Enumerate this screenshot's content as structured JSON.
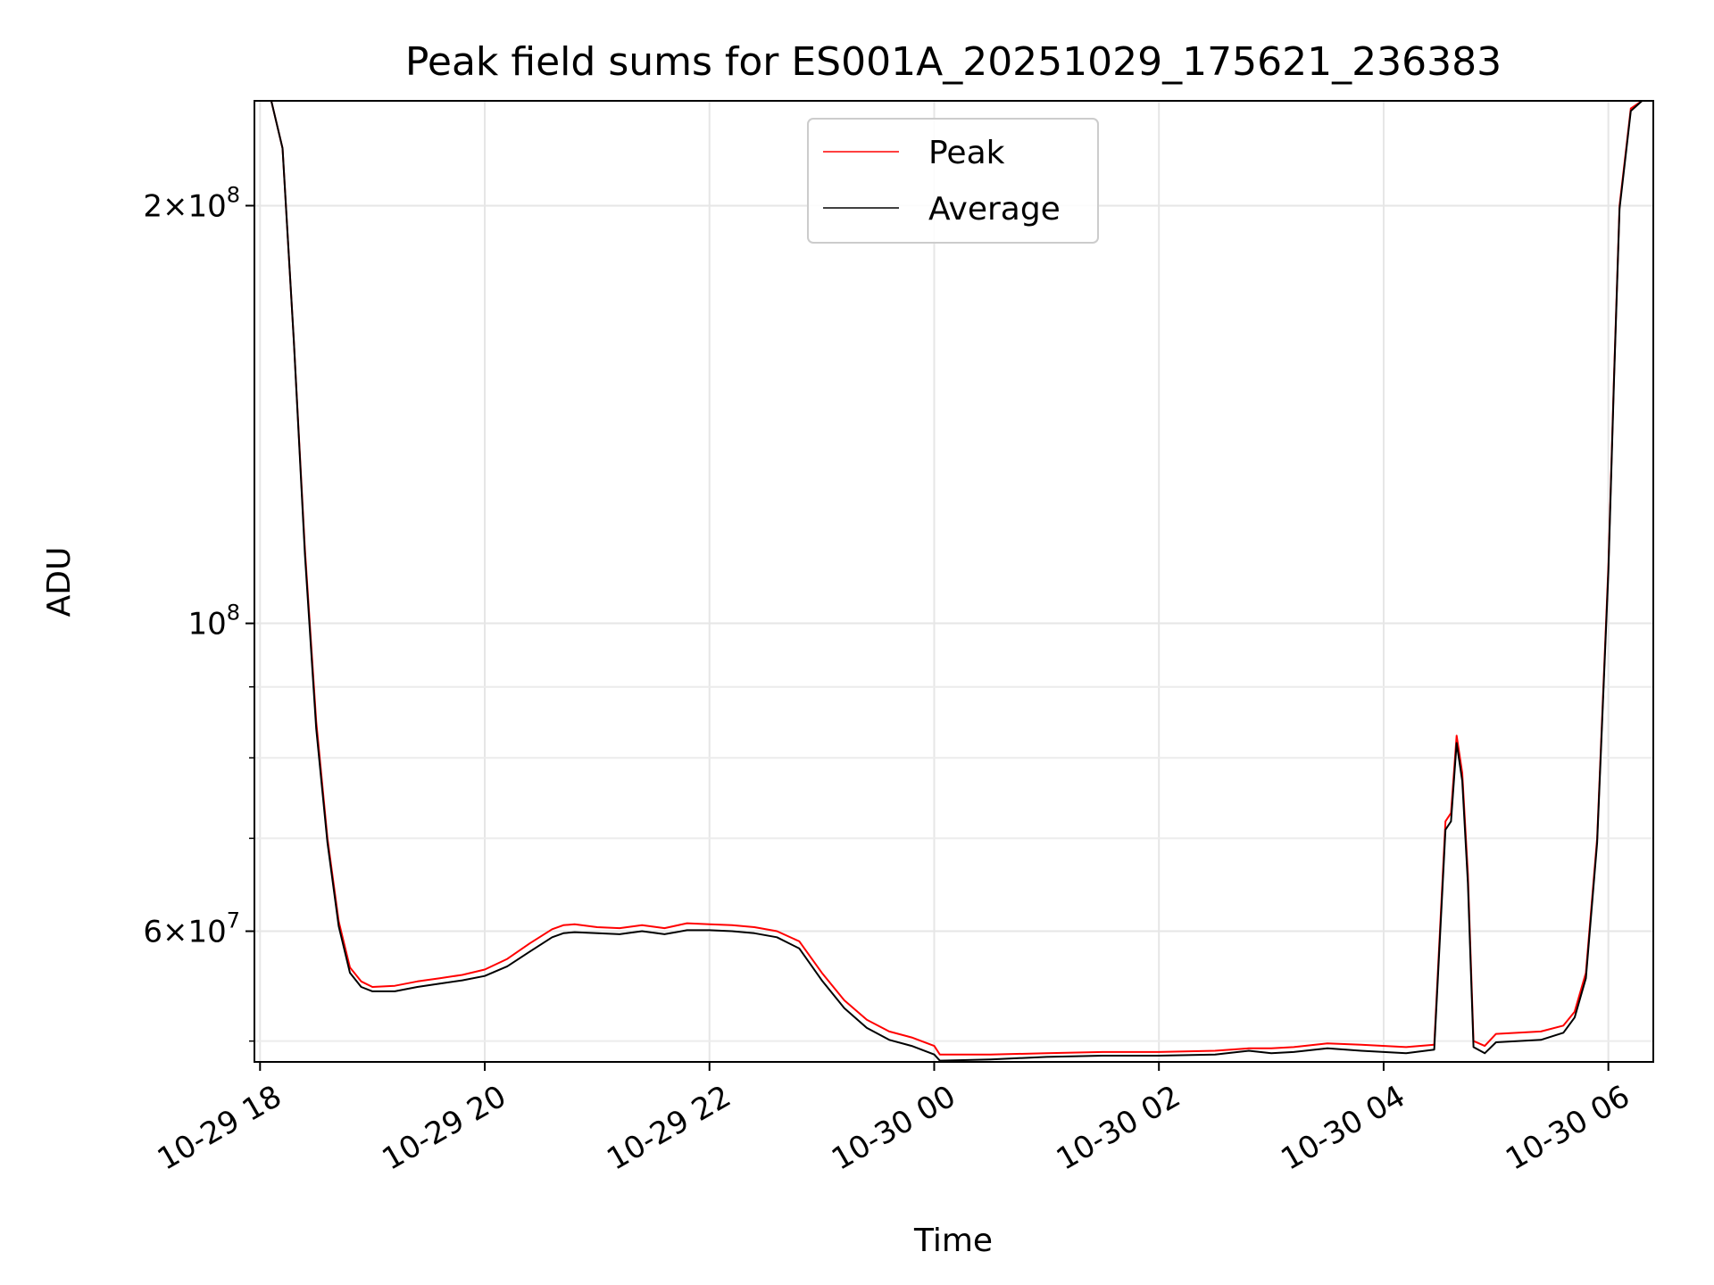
{
  "chart_data": {
    "type": "line",
    "title": "Peak field sums for ES001A_20251029_175621_236383",
    "xlabel": "Time",
    "ylabel": "ADU",
    "x_unit": "hours since 10-29 18:00",
    "xlim": [
      -0.05,
      12.4
    ],
    "ylim": [
      48300000,
      238000000
    ],
    "yscale": "log",
    "grid": true,
    "legend_position": "upper center",
    "x_ticks": [
      {
        "value": 0,
        "label": "10-29 18"
      },
      {
        "value": 2,
        "label": "10-29 20"
      },
      {
        "value": 4,
        "label": "10-29 22"
      },
      {
        "value": 6,
        "label": "10-30 00"
      },
      {
        "value": 8,
        "label": "10-30 02"
      },
      {
        "value": 10,
        "label": "10-30 04"
      },
      {
        "value": 12,
        "label": "10-30 06"
      }
    ],
    "y_ticks": [
      {
        "value": 200000000,
        "mantissa": "2",
        "exponent": "8"
      },
      {
        "value": 100000000,
        "mantissa": "",
        "exponent": "8"
      },
      {
        "value": 60000000,
        "mantissa": "6",
        "exponent": "7"
      }
    ],
    "y_minor_ticks": [
      50000000,
      70000000,
      80000000,
      90000000
    ],
    "series": [
      {
        "name": "Peak",
        "color": "#ff0000",
        "x": [
          -0.05,
          0.1,
          0.2,
          0.3,
          0.4,
          0.5,
          0.6,
          0.7,
          0.8,
          0.9,
          1.0,
          1.2,
          1.4,
          1.6,
          1.8,
          2.0,
          2.2,
          2.4,
          2.6,
          2.7,
          2.8,
          3.0,
          3.2,
          3.4,
          3.6,
          3.8,
          4.0,
          4.2,
          4.4,
          4.6,
          4.8,
          5.0,
          5.2,
          5.4,
          5.6,
          5.8,
          6.0,
          6.05,
          6.5,
          7.0,
          7.5,
          8.0,
          8.5,
          8.8,
          9.0,
          9.2,
          9.5,
          9.8,
          10.2,
          10.45,
          10.55,
          10.6,
          10.65,
          10.7,
          10.75,
          10.8,
          10.9,
          11.0,
          11.2,
          11.4,
          11.6,
          11.7,
          11.8,
          11.9,
          12.0,
          12.05,
          12.1,
          12.2,
          12.3,
          12.4
        ],
        "y": [
          238000000,
          238000000,
          220000000,
          160000000,
          113000000,
          85000000,
          70000000,
          61000000,
          56500000,
          55200000,
          54700000,
          54800000,
          55200000,
          55500000,
          55800000,
          56300000,
          57300000,
          58800000,
          60200000,
          60600000,
          60700000,
          60400000,
          60300000,
          60600000,
          60300000,
          60800000,
          60700000,
          60600000,
          60400000,
          60000000,
          59000000,
          56000000,
          53500000,
          51800000,
          50800000,
          50300000,
          49600000,
          48900000,
          48900000,
          49000000,
          49100000,
          49100000,
          49200000,
          49400000,
          49400000,
          49500000,
          49800000,
          49700000,
          49500000,
          49700000,
          72000000,
          73000000,
          83000000,
          78000000,
          66000000,
          50000000,
          49600000,
          50600000,
          50700000,
          50800000,
          51300000,
          52500000,
          56000000,
          70000000,
          110000000,
          150000000,
          200000000,
          235000000,
          238000000,
          238000000
        ]
      },
      {
        "name": "Average",
        "color": "#000000",
        "x": [
          -0.05,
          0.1,
          0.2,
          0.3,
          0.4,
          0.5,
          0.6,
          0.7,
          0.8,
          0.9,
          1.0,
          1.2,
          1.4,
          1.6,
          1.8,
          2.0,
          2.2,
          2.4,
          2.6,
          2.7,
          2.8,
          3.0,
          3.2,
          3.4,
          3.6,
          3.8,
          4.0,
          4.2,
          4.4,
          4.6,
          4.8,
          5.0,
          5.2,
          5.4,
          5.6,
          5.8,
          6.0,
          6.05,
          6.5,
          7.0,
          7.5,
          8.0,
          8.5,
          8.8,
          9.0,
          9.2,
          9.5,
          9.8,
          10.2,
          10.45,
          10.55,
          10.6,
          10.65,
          10.7,
          10.75,
          10.8,
          10.9,
          11.0,
          11.2,
          11.4,
          11.6,
          11.7,
          11.8,
          11.9,
          12.0,
          12.05,
          12.1,
          12.2,
          12.3,
          12.4
        ],
        "y": [
          238000000,
          238000000,
          220000000,
          160000000,
          112000000,
          84000000,
          69500000,
          60500000,
          56000000,
          54700000,
          54300000,
          54300000,
          54700000,
          55000000,
          55300000,
          55700000,
          56600000,
          58000000,
          59400000,
          59800000,
          59900000,
          59800000,
          59700000,
          60000000,
          59700000,
          60100000,
          60100000,
          60000000,
          59800000,
          59400000,
          58300000,
          55300000,
          52800000,
          51100000,
          50100000,
          49600000,
          48900000,
          48400000,
          48500000,
          48700000,
          48800000,
          48800000,
          48900000,
          49200000,
          49000000,
          49100000,
          49400000,
          49200000,
          49000000,
          49300000,
          71000000,
          72000000,
          82000000,
          77000000,
          65000000,
          49500000,
          49000000,
          49900000,
          50000000,
          50100000,
          50700000,
          52000000,
          55500000,
          69500000,
          109000000,
          149000000,
          199000000,
          234000000,
          238000000,
          238000000
        ]
      }
    ]
  }
}
